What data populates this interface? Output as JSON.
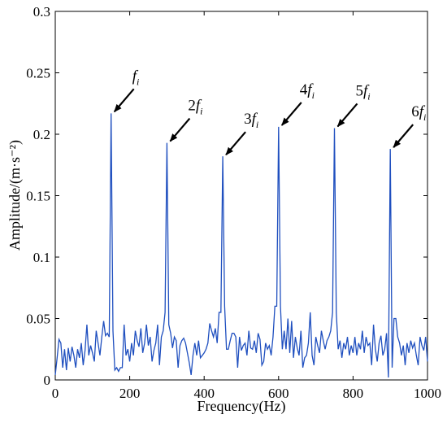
{
  "chart_data": {
    "type": "line",
    "xlabel": "Frequency(Hz)",
    "ylabel": "Amplitude/(m·s⁻²)",
    "xlim": [
      0,
      1000
    ],
    "ylim": [
      0,
      0.3
    ],
    "xticks": [
      0,
      200,
      400,
      600,
      800,
      1000
    ],
    "yticks": [
      0,
      0.05,
      0.1,
      0.15,
      0.2,
      0.25,
      0.3
    ],
    "xtick_labels": [
      "0",
      "200",
      "400",
      "600",
      "800",
      "1000"
    ],
    "ytick_labels": [
      "0",
      "0.05",
      "0.1",
      "0.15",
      "0.2",
      "0.25",
      "0.3"
    ],
    "grid": false,
    "line_color": "#1f4fbf",
    "series": [
      {
        "x": [
          0,
          5,
          10,
          15,
          20,
          25,
          30,
          35,
          40,
          45,
          50,
          55,
          60,
          65,
          70,
          75,
          80,
          85,
          90,
          95,
          100,
          105,
          110,
          115,
          120,
          125,
          130,
          135,
          140,
          145,
          150,
          155,
          160,
          165,
          170,
          175,
          180,
          185,
          190,
          195,
          200,
          205,
          210,
          215,
          220,
          225,
          230,
          235,
          240,
          245,
          250,
          255,
          260,
          265,
          270,
          275,
          280,
          285,
          290,
          295,
          300,
          305,
          310,
          315,
          320,
          325,
          330,
          335,
          340,
          345,
          350,
          355,
          360,
          365,
          370,
          375,
          380,
          385,
          390,
          395,
          400,
          405,
          410,
          415,
          420,
          425,
          430,
          435,
          440,
          445,
          450,
          455,
          460,
          465,
          470,
          475,
          480,
          485,
          490,
          495,
          500,
          505,
          510,
          515,
          520,
          525,
          530,
          535,
          540,
          545,
          550,
          555,
          560,
          565,
          570,
          575,
          580,
          585,
          590,
          595,
          600,
          605,
          610,
          615,
          620,
          625,
          630,
          635,
          640,
          645,
          650,
          655,
          660,
          665,
          670,
          675,
          680,
          685,
          690,
          695,
          700,
          705,
          710,
          715,
          720,
          725,
          730,
          735,
          740,
          745,
          750,
          755,
          760,
          765,
          770,
          775,
          780,
          785,
          790,
          795,
          800,
          805,
          810,
          815,
          820,
          825,
          830,
          835,
          840,
          845,
          850,
          855,
          860,
          865,
          870,
          875,
          880,
          885,
          890,
          895,
          900,
          905,
          910,
          915,
          920,
          925,
          930,
          935,
          940,
          945,
          950,
          955,
          960,
          965,
          970,
          975,
          980,
          985,
          990,
          995,
          1000
        ],
        "y": [
          0.004,
          0.018,
          0.033,
          0.03,
          0.01,
          0.025,
          0.008,
          0.026,
          0.015,
          0.027,
          0.02,
          0.01,
          0.025,
          0.018,
          0.03,
          0.012,
          0.024,
          0.045,
          0.02,
          0.028,
          0.022,
          0.015,
          0.04,
          0.03,
          0.02,
          0.035,
          0.048,
          0.036,
          0.038,
          0.035,
          0.217,
          0.04,
          0.008,
          0.01,
          0.007,
          0.01,
          0.01,
          0.045,
          0.02,
          0.025,
          0.015,
          0.03,
          0.02,
          0.04,
          0.032,
          0.027,
          0.042,
          0.022,
          0.03,
          0.045,
          0.028,
          0.035,
          0.015,
          0.024,
          0.03,
          0.045,
          0.012,
          0.035,
          0.04,
          0.055,
          0.193,
          0.045,
          0.038,
          0.026,
          0.035,
          0.032,
          0.01,
          0.028,
          0.032,
          0.034,
          0.03,
          0.022,
          0.014,
          0.004,
          0.02,
          0.03,
          0.02,
          0.032,
          0.018,
          0.02,
          0.022,
          0.025,
          0.03,
          0.046,
          0.04,
          0.035,
          0.042,
          0.03,
          0.055,
          0.055,
          0.182,
          0.06,
          0.025,
          0.025,
          0.032,
          0.038,
          0.038,
          0.035,
          0.01,
          0.035,
          0.024,
          0.028,
          0.03,
          0.02,
          0.04,
          0.026,
          0.025,
          0.032,
          0.022,
          0.038,
          0.033,
          0.012,
          0.015,
          0.03,
          0.025,
          0.028,
          0.02,
          0.035,
          0.06,
          0.06,
          0.206,
          0.06,
          0.025,
          0.04,
          0.025,
          0.05,
          0.022,
          0.048,
          0.018,
          0.035,
          0.026,
          0.02,
          0.04,
          0.01,
          0.018,
          0.02,
          0.03,
          0.055,
          0.02,
          0.012,
          0.035,
          0.028,
          0.022,
          0.04,
          0.032,
          0.025,
          0.032,
          0.035,
          0.04,
          0.055,
          0.205,
          0.055,
          0.025,
          0.032,
          0.018,
          0.03,
          0.025,
          0.035,
          0.02,
          0.028,
          0.022,
          0.035,
          0.02,
          0.03,
          0.025,
          0.04,
          0.022,
          0.035,
          0.028,
          0.03,
          0.012,
          0.045,
          0.025,
          0.015,
          0.03,
          0.036,
          0.02,
          0.025,
          0.038,
          0.002,
          0.188,
          0.01,
          0.05,
          0.05,
          0.035,
          0.03,
          0.02,
          0.028,
          0.012,
          0.03,
          0.022,
          0.032,
          0.026,
          0.03,
          0.02,
          0.012,
          0.035,
          0.028,
          0.024,
          0.035,
          0.015
        ]
      }
    ],
    "annotations": [
      {
        "coef": "",
        "label": "f",
        "sub": "i"
      },
      {
        "coef": "2",
        "label": "f",
        "sub": "i"
      },
      {
        "coef": "3",
        "label": "f",
        "sub": "i"
      },
      {
        "coef": "4",
        "label": "f",
        "sub": "i"
      },
      {
        "coef": "5",
        "label": "f",
        "sub": "i"
      },
      {
        "coef": "6",
        "label": "f",
        "sub": "i"
      }
    ]
  }
}
